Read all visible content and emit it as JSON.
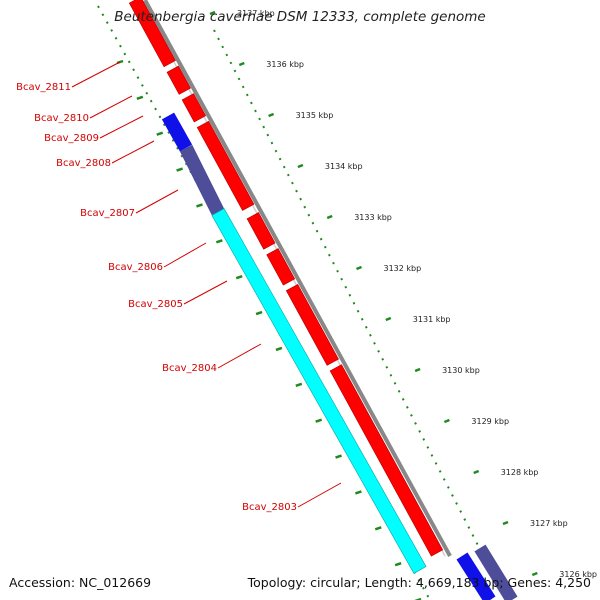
{
  "title": "Beutenbergia cavernae DSM 12333, complete genome",
  "footer": {
    "accession": "Accession: NC_012669",
    "summary": "Topology: circular; Length: 4,669,183 bp; Genes: 4,250"
  },
  "colors": {
    "forward_gene": "#ff0000",
    "reverse_gene": "#00ffff",
    "highlight_blue": "#1010e8",
    "highlight_slate": "#4d4d9a",
    "backbone": "#888888",
    "tick_dots": "#1f8a1f",
    "label": "#d40000"
  },
  "tick_labels": [
    "3137 kbp",
    "3136 kbp",
    "3135 kbp",
    "3134 kbp",
    "3133 kbp",
    "3132 kbp",
    "3131 kbp",
    "3130 kbp",
    "3129 kbp",
    "3128 kbp",
    "3127 kbp",
    "3126 kbp"
  ],
  "gene_labels": [
    "Bcav_2811",
    "Bcav_2810",
    "Bcav_2809",
    "Bcav_2808",
    "Bcav_2807",
    "Bcav_2806",
    "Bcav_2805",
    "Bcav_2804",
    "Bcav_2803"
  ]
}
